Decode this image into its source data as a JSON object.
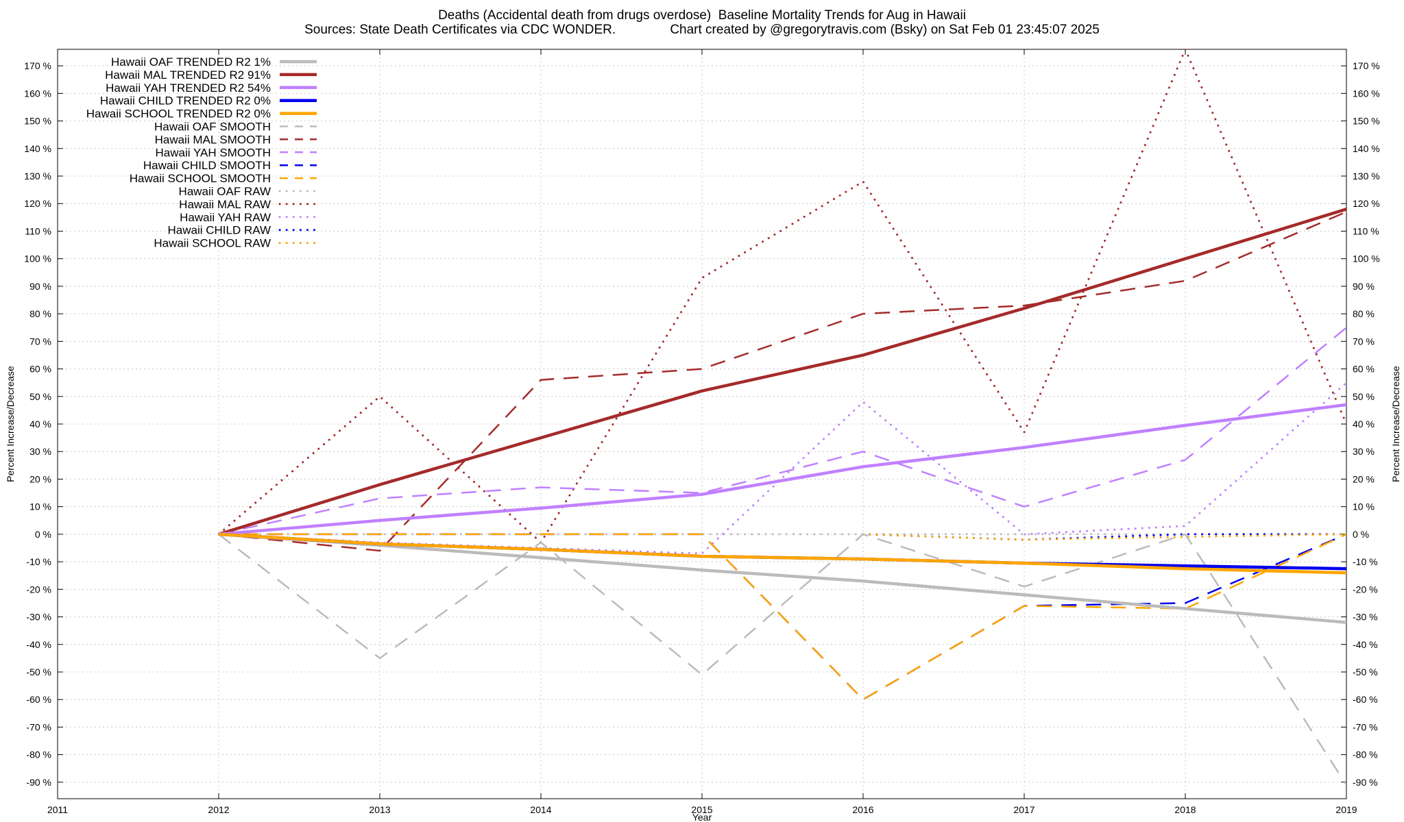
{
  "chart_data": {
    "type": "line",
    "title": "Deaths (Accidental death from drugs overdose)  Baseline Mortality Trends for Aug in Hawaii",
    "subtitle": "Sources: State Death Certificates via CDC WONDER.               Chart created by @gregorytravis.com (Bsky) on Sat Feb 01 23:45:07 2025",
    "xlabel": "Year",
    "ylabel": "Percent Increase/Decrease",
    "y2label": "Percent Increase/Decrease",
    "xlim": [
      2011,
      2019
    ],
    "ylim": [
      -96,
      176
    ],
    "x_ticks": [
      "2011",
      "2012",
      "2013",
      "2014",
      "2015",
      "2016",
      "2017",
      "2018",
      "2019"
    ],
    "y_ticks": [
      "170 %",
      "160 %",
      "150 %",
      "140 %",
      "130 %",
      "120 %",
      "110 %",
      "100 %",
      "90 %",
      "80 %",
      "70 %",
      "60 %",
      "50 %",
      "40 %",
      "30 %",
      "20 %",
      "10 %",
      "0 %",
      "-10 %",
      "-20 %",
      "-30 %",
      "-40 %",
      "-50 %",
      "-60 %",
      "-70 %",
      "-80 %",
      "-90 %"
    ],
    "grid": true,
    "legend_position": "top-left",
    "series": [
      {
        "name": "Hawaii OAF TRENDED R2   1%",
        "style": "solid",
        "color": "#bbbbbb",
        "x": [
          2012,
          2013,
          2014,
          2015,
          2016,
          2017,
          2018,
          2019
        ],
        "values": [
          0,
          -4,
          -8.5,
          -13,
          -17,
          -22,
          -27,
          -32
        ]
      },
      {
        "name": "Hawaii MAL TRENDED R2  91%",
        "style": "solid",
        "color": "#a52a2a",
        "x": [
          2012,
          2013,
          2014,
          2015,
          2016,
          2017,
          2018,
          2019
        ],
        "values": [
          0,
          18,
          35,
          52,
          65,
          82,
          100,
          118
        ]
      },
      {
        "name": "Hawaii YAH TRENDED R2  54%",
        "style": "solid",
        "color": "#c080ff",
        "x": [
          2012,
          2013,
          2014,
          2015,
          2016,
          2017,
          2018,
          2019
        ],
        "values": [
          0,
          5,
          9.5,
          14.5,
          24.5,
          31.5,
          39.5,
          47
        ]
      },
      {
        "name": "Hawaii CHILD TRENDED R2   0%",
        "style": "solid",
        "color": "#0000ee",
        "x": [
          2012,
          2013,
          2014,
          2015,
          2016,
          2017,
          2018,
          2019
        ],
        "values": [
          0,
          -3.5,
          -5.5,
          -8,
          -9,
          -10.5,
          -11.5,
          -12.5
        ]
      },
      {
        "name": "Hawaii SCHOOL TRENDED R2   0%",
        "style": "solid",
        "color": "#ffa500",
        "x": [
          2012,
          2013,
          2014,
          2015,
          2016,
          2017,
          2018,
          2019
        ],
        "values": [
          0,
          -3.5,
          -5.5,
          -8,
          -9,
          -10.5,
          -12.5,
          -14
        ]
      },
      {
        "name": "Hawaii OAF SMOOTH",
        "style": "dashed",
        "color": "#bbbbbb",
        "x": [
          2012,
          2013,
          2014,
          2015,
          2016,
          2017,
          2018,
          2019
        ],
        "values": [
          0,
          -45,
          -3,
          -51,
          0,
          -19,
          0,
          -91
        ]
      },
      {
        "name": "Hawaii MAL SMOOTH",
        "style": "dashed",
        "color": "#a52a2a",
        "x": [
          2012,
          2013,
          2014,
          2015,
          2016,
          2017,
          2018,
          2019
        ],
        "values": [
          0,
          -6,
          56,
          60,
          80,
          83,
          92,
          117
        ]
      },
      {
        "name": "Hawaii YAH SMOOTH",
        "style": "dashed",
        "color": "#c080ff",
        "x": [
          2012,
          2013,
          2014,
          2015,
          2016,
          2017,
          2018,
          2019
        ],
        "values": [
          0,
          13,
          17,
          15,
          30,
          10,
          27,
          75
        ]
      },
      {
        "name": "Hawaii CHILD SMOOTH",
        "style": "dashed",
        "color": "#0000ee",
        "x": [
          2012,
          2013,
          2014,
          2015,
          2016,
          2017,
          2018,
          2019
        ],
        "values": [
          0,
          0,
          0,
          0,
          -60,
          -26,
          -25,
          0
        ]
      },
      {
        "name": "Hawaii SCHOOL SMOOTH",
        "style": "dashed",
        "color": "#ffa500",
        "x": [
          2012,
          2013,
          2014,
          2015,
          2016,
          2017,
          2018,
          2019
        ],
        "values": [
          0,
          0,
          0,
          0,
          -60,
          -26,
          -27,
          0
        ]
      },
      {
        "name": "Hawaii OAF RAW",
        "style": "dotted",
        "color": "#bbbbbb",
        "x": [
          2012,
          2013,
          2014,
          2015,
          2016,
          2017,
          2018,
          2019
        ],
        "values": [
          0,
          0,
          0,
          0,
          0,
          0,
          0,
          0
        ]
      },
      {
        "name": "Hawaii MAL RAW",
        "style": "dotted",
        "color": "#a52a2a",
        "x": [
          2012,
          2013,
          2014,
          2015,
          2016,
          2017,
          2018,
          2019
        ],
        "values": [
          0,
          50,
          -3,
          93,
          128,
          37,
          176,
          40
        ]
      },
      {
        "name": "Hawaii YAH RAW",
        "style": "dotted",
        "color": "#c080ff",
        "x": [
          2012,
          2013,
          2014,
          2015,
          2016,
          2017,
          2018,
          2019
        ],
        "values": [
          0,
          -3,
          -5,
          -7,
          48,
          0,
          3,
          55
        ]
      },
      {
        "name": "Hawaii CHILD RAW",
        "style": "dotted",
        "color": "#0000ee",
        "x": [
          2016,
          2017,
          2018,
          2019
        ],
        "values": [
          0,
          -2,
          0,
          0
        ]
      },
      {
        "name": "Hawaii SCHOOL RAW",
        "style": "dotted",
        "color": "#ffa500",
        "x": [
          2016,
          2017,
          2018,
          2019
        ],
        "values": [
          0,
          -2,
          -1,
          0
        ]
      }
    ]
  }
}
